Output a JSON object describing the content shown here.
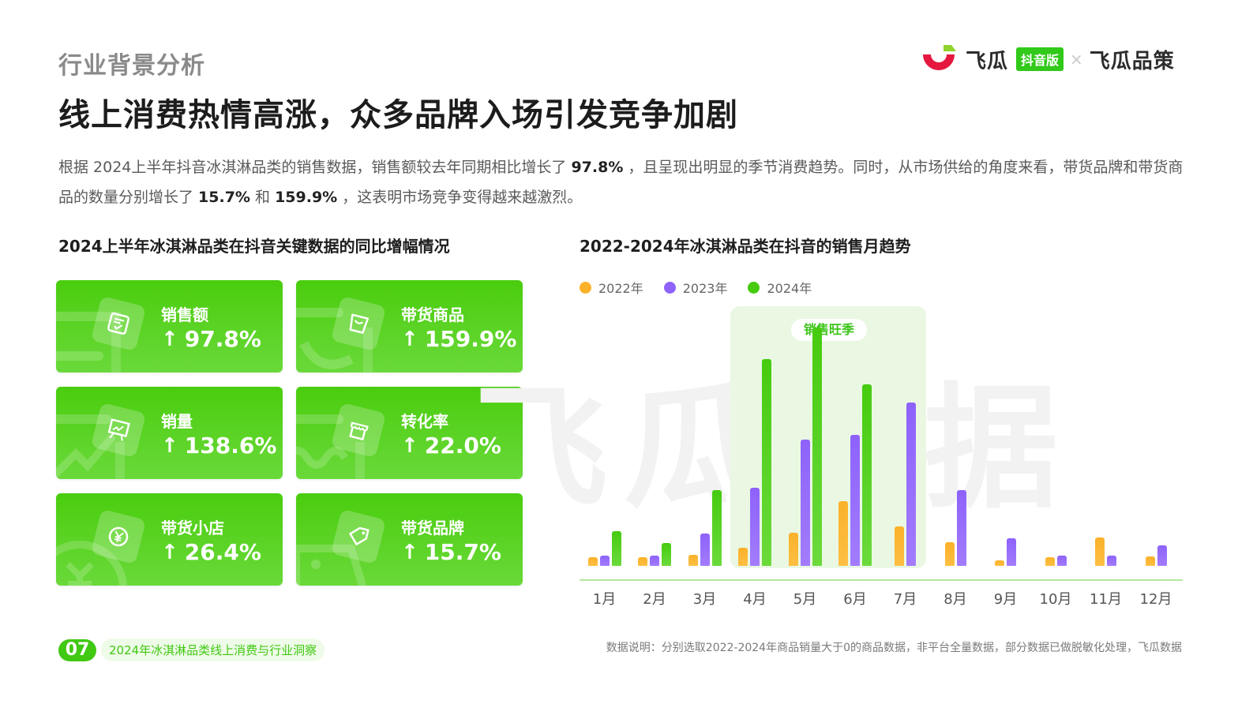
{
  "header": {
    "section_label": "行业背景分析",
    "headline": "线上消费热情高涨，众多品牌入场引发竞争加剧",
    "logo": {
      "brand": "飞瓜",
      "badge": "抖音版",
      "separator": "×",
      "partner": "飞瓜品策"
    }
  },
  "intro": {
    "p1_a": "根据  2024上半年抖音冰淇淋品类的销售数据，销售额较去年同期相比增长了 ",
    "p1_b": "97.8%",
    "p1_c": " ，且呈现出明显的季节消费趋势。同时，从市场供给的角度来看，带货品牌和带货商品的数量分别增长了 ",
    "p1_d": "15.7%",
    "p1_e": " 和 ",
    "p1_f": "159.9%",
    "p1_g": " ，这表明市场竞争变得越来越激烈。"
  },
  "kpi_section": {
    "title": "2024上半年冰淇淋品类在抖音关键数据的同比增幅情况",
    "cards": [
      {
        "label": "销售额",
        "value": "97.8%",
        "icon": "receipt-check-icon",
        "arrow": "↑"
      },
      {
        "label": "带货商品",
        "value": "159.9%",
        "icon": "shopping-bag-icon",
        "arrow": "↑"
      },
      {
        "label": "销量",
        "value": "138.6%",
        "icon": "trend-board-icon",
        "arrow": "↑"
      },
      {
        "label": "转化率",
        "value": "22.0%",
        "icon": "storefront-icon",
        "arrow": "↑"
      },
      {
        "label": "带货小店",
        "value": "26.4%",
        "icon": "yen-coin-icon",
        "arrow": "↑"
      },
      {
        "label": "带货品牌",
        "value": "15.7%",
        "icon": "price-tag-icon",
        "arrow": "↑"
      }
    ]
  },
  "chart_section": {
    "title": "2022-2024年冰淇淋品类在抖音的销售月趋势",
    "peak_label": "销售旺季",
    "watermark": "飞瓜数据"
  },
  "chart_data": {
    "type": "bar",
    "title": "2022-2024年冰淇淋品类在抖音的销售月趋势",
    "xlabel": "",
    "ylabel": "",
    "categories": [
      "1月",
      "2月",
      "3月",
      "4月",
      "5月",
      "6月",
      "7月",
      "8月",
      "9月",
      "10月",
      "11月",
      "12月"
    ],
    "series": [
      {
        "name": "2022年",
        "color": "#fbb12a",
        "values": [
          10,
          10,
          13,
          21,
          39,
          76,
          47,
          28,
          7,
          10,
          34,
          11
        ]
      },
      {
        "name": "2023年",
        "color": "#8e62fb",
        "values": [
          12,
          12,
          38,
          92,
          149,
          155,
          193,
          89,
          33,
          12,
          12,
          24
        ]
      },
      {
        "name": "2024年",
        "color": "#46cb0f",
        "values": [
          41,
          27,
          89,
          244,
          281,
          214,
          null,
          null,
          null,
          null,
          null,
          null
        ]
      }
    ],
    "units": "relative (no y-axis shown; values estimated from bar pixel heights)",
    "ylim": [
      0,
      300
    ],
    "grid": false,
    "legend_position": "top-left",
    "annotations": [
      {
        "label": "销售旺季",
        "span": [
          "4月",
          "7月"
        ]
      }
    ]
  },
  "footer": {
    "page_number": "07",
    "report_name": "2024年冰淇淋品类线上消费与行业洞察",
    "note": "数据说明：分别选取2022-2024年商品销量大于0的商品数据，非平台全量数据，部分数据已做脱敏化处理，飞瓜数据"
  }
}
